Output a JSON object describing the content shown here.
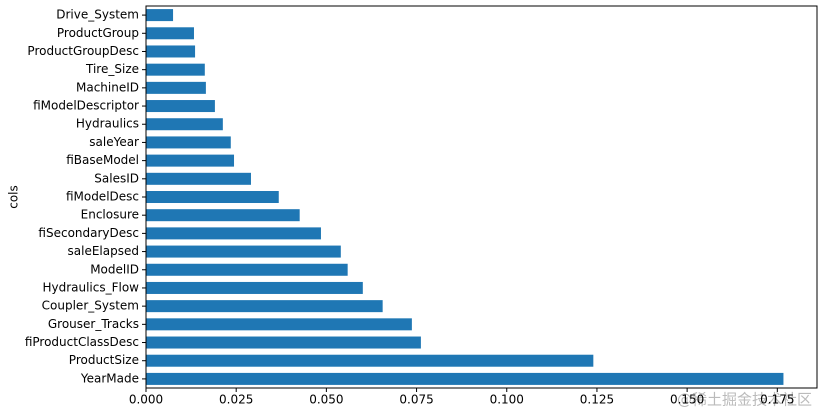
{
  "chart_data": {
    "type": "barh",
    "y_label": "cols",
    "watermark": "@稀土掘金技术社区",
    "color": "#1f77b4",
    "categories": [
      "Drive_System",
      "ProductGroup",
      "ProductGroupDesc",
      "Tire_Size",
      "MachineID",
      "fiModelDescriptor",
      "Hydraulics",
      "saleYear",
      "fiBaseModel",
      "SalesID",
      "fiModelDesc",
      "Enclosure",
      "fiSecondaryDesc",
      "saleElapsed",
      "ModelID",
      "Hydraulics_Flow",
      "Coupler_System",
      "Grouser_Tracks",
      "fiProductClassDesc",
      "ProductSize",
      "YearMade"
    ],
    "values": [
      0.0075,
      0.0133,
      0.0136,
      0.0163,
      0.0166,
      0.0191,
      0.0213,
      0.0235,
      0.0244,
      0.0291,
      0.0368,
      0.0426,
      0.0485,
      0.054,
      0.0559,
      0.0601,
      0.0656,
      0.0737,
      0.0762,
      0.124,
      0.1767
    ],
    "xlim": [
      0,
      0.186
    ],
    "xticks": [
      {
        "value": 0,
        "label": "0.000"
      },
      {
        "value": 0.025,
        "label": "0.025"
      },
      {
        "value": 0.05,
        "label": "0.050"
      },
      {
        "value": 0.075,
        "label": "0.075"
      },
      {
        "value": 0.1,
        "label": "0.100"
      },
      {
        "value": 0.125,
        "label": "0.125"
      },
      {
        "value": 0.15,
        "label": "0.150"
      },
      {
        "value": 0.175,
        "label": "0.175"
      }
    ]
  }
}
